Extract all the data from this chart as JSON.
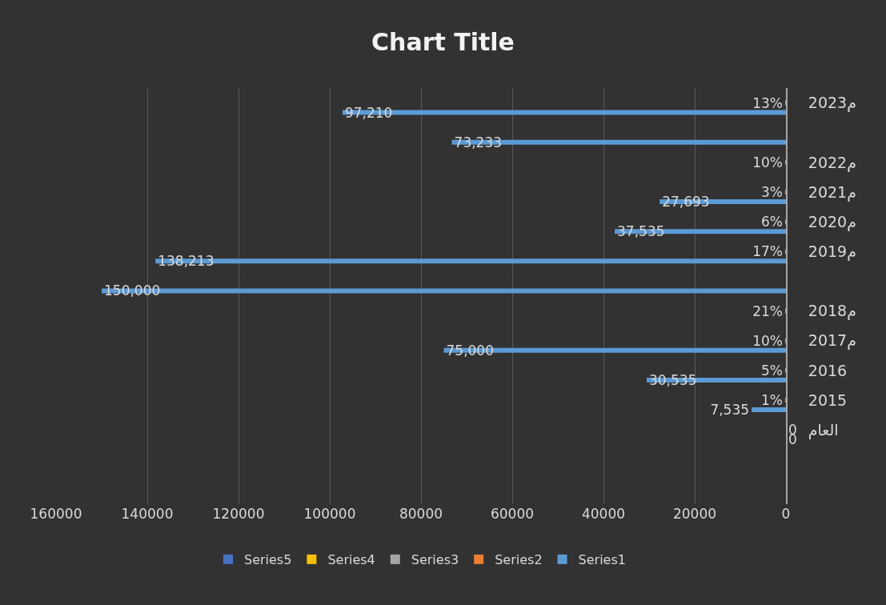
{
  "chart_data": {
    "type": "bar",
    "orientation": "horizontal",
    "title": "Chart Title",
    "categories": [
      "2023م",
      null,
      "2022م",
      "2021م",
      "2020م",
      "2019م",
      null,
      "2018م",
      "2017م",
      "2016",
      "2015",
      "العام",
      null,
      null
    ],
    "series": [
      {
        "name": "Series1",
        "color": "#5b9bd5",
        "values": [
          97210,
          73233,
          null,
          27693,
          37535,
          138213,
          150000,
          null,
          75000,
          30535,
          7535,
          0,
          null,
          null
        ],
        "value_labels": [
          "97,210",
          "73,233",
          null,
          "27,693",
          "37,535",
          "138,213",
          "150,000",
          null,
          "75,000",
          "30,535",
          "7,535",
          "0",
          null,
          null
        ]
      },
      {
        "name": "Series2",
        "color": "#ed7d31",
        "values": [
          null,
          null,
          null,
          null,
          null,
          null,
          null,
          null,
          null,
          null,
          null,
          null,
          null,
          null
        ]
      },
      {
        "name": "Series3",
        "color": "#a5a5a5",
        "values": [
          13,
          null,
          10,
          3,
          6,
          17,
          null,
          21,
          10,
          5,
          1,
          0,
          null,
          null
        ],
        "value_labels": [
          "13%",
          null,
          "10%",
          "3%",
          "6%",
          "17%",
          null,
          "21%",
          "10%",
          "5%",
          "1%",
          "0",
          null,
          null
        ]
      },
      {
        "name": "Series4",
        "color": "#ffc000",
        "values": [
          null,
          null,
          null,
          null,
          null,
          null,
          null,
          null,
          null,
          null,
          null,
          null,
          null,
          null
        ]
      },
      {
        "name": "Series5",
        "color": "#4472c4",
        "values": [
          null,
          null,
          null,
          null,
          null,
          null,
          null,
          null,
          null,
          null,
          null,
          null,
          null,
          null
        ]
      }
    ],
    "xlim": [
      160000,
      0
    ],
    "xticks": [
      160000,
      140000,
      120000,
      100000,
      80000,
      60000,
      40000,
      20000,
      0
    ],
    "grid": "x",
    "legend": "bottom"
  }
}
